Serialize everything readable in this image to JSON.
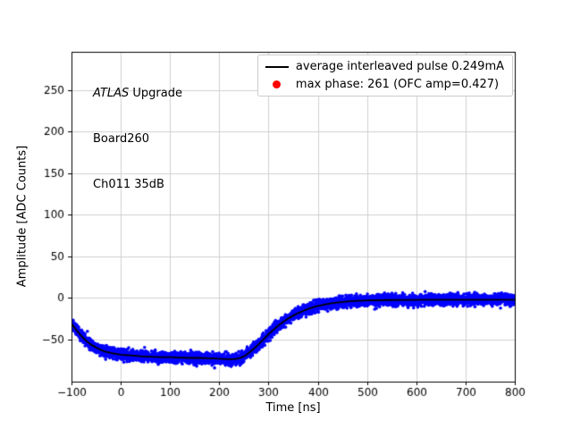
{
  "figure": {
    "background": "#ffffff"
  },
  "annotation": {
    "line1_italic": "ATLAS",
    "line1_rest": " Upgrade",
    "line2": "Board260",
    "line3": "Ch011 35dB"
  },
  "legend": {
    "items": [
      {
        "marker": "line",
        "color": "#000000",
        "label": "average interleaved pulse 0.249mA"
      },
      {
        "marker": "dot",
        "color": "#ff0000",
        "label": "max phase: 261 (OFC amp=0.427)"
      }
    ]
  },
  "chart_data": {
    "type": "scatter",
    "title": "",
    "xlabel": "Time [ns]",
    "ylabel": "Amplitude [ADC Counts]",
    "xlim": [
      -100,
      800
    ],
    "ylim": [
      -101,
      296
    ],
    "xticks": [
      -100,
      0,
      100,
      200,
      300,
      400,
      500,
      600,
      700,
      800
    ],
    "yticks": [
      -50,
      0,
      50,
      100,
      150,
      200,
      250
    ],
    "grid": true,
    "grid_color": "#cccccc",
    "series": [
      {
        "name": "interleaved samples",
        "type": "scatter",
        "color": "#0000ff",
        "noise_sigma": 3.2,
        "points_per_ns": 6,
        "marker_radius": 1.8
      },
      {
        "name": "average interleaved pulse 0.249mA",
        "type": "line",
        "color": "#000000",
        "line_width": 1.8
      }
    ],
    "average_pulse": [
      [
        -100,
        -31
      ],
      [
        -90,
        -39
      ],
      [
        -80,
        -46
      ],
      [
        -70,
        -52
      ],
      [
        -60,
        -56.5
      ],
      [
        -50,
        -60
      ],
      [
        -40,
        -63
      ],
      [
        -30,
        -65
      ],
      [
        -20,
        -66.5
      ],
      [
        -10,
        -67.5
      ],
      [
        0,
        -68.5
      ],
      [
        20,
        -69.5
      ],
      [
        40,
        -70.5
      ],
      [
        60,
        -71
      ],
      [
        80,
        -71.5
      ],
      [
        100,
        -71.5
      ],
      [
        120,
        -72
      ],
      [
        140,
        -72.5
      ],
      [
        160,
        -72.5
      ],
      [
        180,
        -73
      ],
      [
        200,
        -73.5
      ],
      [
        215,
        -74
      ],
      [
        230,
        -74
      ],
      [
        240,
        -73
      ],
      [
        250,
        -70.5
      ],
      [
        260,
        -66.5
      ],
      [
        270,
        -61.5
      ],
      [
        280,
        -56
      ],
      [
        290,
        -50
      ],
      [
        300,
        -44
      ],
      [
        310,
        -38.5
      ],
      [
        320,
        -33.5
      ],
      [
        330,
        -29
      ],
      [
        340,
        -25
      ],
      [
        350,
        -21.5
      ],
      [
        360,
        -18.5
      ],
      [
        370,
        -16
      ],
      [
        380,
        -13.5
      ],
      [
        390,
        -11.5
      ],
      [
        400,
        -10
      ],
      [
        415,
        -8
      ],
      [
        430,
        -6.5
      ],
      [
        450,
        -5
      ],
      [
        470,
        -4
      ],
      [
        500,
        -3.2
      ],
      [
        540,
        -2.8
      ],
      [
        580,
        -2.6
      ],
      [
        620,
        -2.5
      ],
      [
        660,
        -2.5
      ],
      [
        700,
        -2.5
      ],
      [
        750,
        -2.5
      ],
      [
        800,
        -2.5
      ]
    ]
  }
}
